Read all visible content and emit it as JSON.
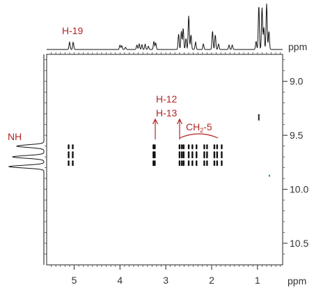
{
  "chart_data": {
    "type": "scatter",
    "x_axis": {
      "reversed": true,
      "ticks": [
        5,
        4,
        3,
        2,
        1
      ],
      "unit": "ppm",
      "range": [
        5.6,
        0.45
      ]
    },
    "y_axis": {
      "reversed": true,
      "ticks": [
        "9.0",
        "9.5",
        "10.0",
        "10.5"
      ],
      "unit": "ppm",
      "range": [
        8.75,
        10.7
      ]
    },
    "grid": false,
    "cross_peak_y": 9.7,
    "cross_peaks_x": [
      5.12,
      5.03,
      3.27,
      3.24,
      2.7,
      2.65,
      2.61,
      2.5,
      2.42,
      2.33,
      2.16,
      2.1,
      1.94,
      1.88,
      1.78
    ],
    "extra_peaks": [
      {
        "x": 0.97,
        "y": 9.33,
        "color": "#222222"
      },
      {
        "x": 0.74,
        "y": 9.89,
        "color": "#33aa33"
      }
    ],
    "annotations": {
      "h19": "H-19",
      "h12": "H-12",
      "h13": "H-13",
      "ch2": "CH",
      "ch2_sub": "2",
      "ch2_suffix": "-5",
      "nh": "NH"
    },
    "top_projection_peaks": [
      {
        "x": 5.1,
        "h": 0.2
      },
      {
        "x": 5.02,
        "h": 0.2
      },
      {
        "x": 4.0,
        "h": 0.12
      },
      {
        "x": 3.96,
        "h": 0.1
      },
      {
        "x": 3.88,
        "h": 0.06
      },
      {
        "x": 3.63,
        "h": 0.12
      },
      {
        "x": 3.58,
        "h": 0.15
      },
      {
        "x": 3.52,
        "h": 0.13
      },
      {
        "x": 3.45,
        "h": 0.14
      },
      {
        "x": 3.38,
        "h": 0.09
      },
      {
        "x": 3.26,
        "h": 0.22
      },
      {
        "x": 3.22,
        "h": 0.18
      },
      {
        "x": 2.72,
        "h": 0.42
      },
      {
        "x": 2.66,
        "h": 0.5
      },
      {
        "x": 2.62,
        "h": 0.58
      },
      {
        "x": 2.56,
        "h": 0.3
      },
      {
        "x": 2.5,
        "h": 0.92
      },
      {
        "x": 2.45,
        "h": 0.4
      },
      {
        "x": 2.35,
        "h": 0.2
      },
      {
        "x": 2.18,
        "h": 0.15
      },
      {
        "x": 1.98,
        "h": 0.5
      },
      {
        "x": 1.92,
        "h": 0.4
      },
      {
        "x": 1.85,
        "h": 0.15
      },
      {
        "x": 1.62,
        "h": 0.12
      },
      {
        "x": 1.55,
        "h": 0.12
      },
      {
        "x": 1.03,
        "h": 0.22
      },
      {
        "x": 0.97,
        "h": 1.2
      },
      {
        "x": 0.9,
        "h": 1.15
      },
      {
        "x": 0.86,
        "h": 0.6
      },
      {
        "x": 0.8,
        "h": 1.25
      },
      {
        "x": 0.75,
        "h": 0.5
      }
    ],
    "left_projection_peaks": [
      {
        "y": 9.6,
        "h": 0.78
      },
      {
        "y": 9.7,
        "h": 0.9
      },
      {
        "y": 9.79,
        "h": 1.0
      }
    ]
  }
}
